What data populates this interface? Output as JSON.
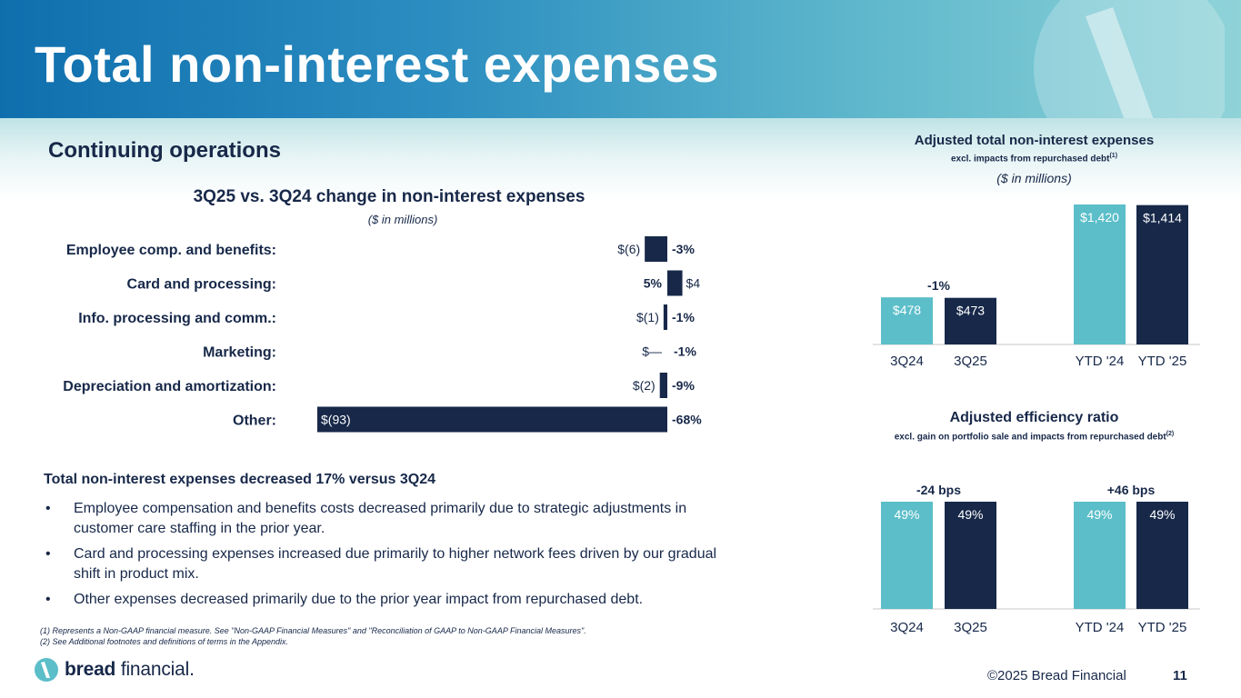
{
  "slide": {
    "title": "Total non-interest expenses",
    "section_title": "Continuing operations",
    "page_number": "11",
    "copyright": "©2025 Bread Financial",
    "brand": {
      "word1": "bread",
      "word2": " financial.",
      "logo_icon": "bread-logo-icon"
    },
    "colors": {
      "navy": "#172849",
      "teal": "#5bbec9",
      "banner_start": "#0f6fae",
      "banner_end": "#8fd3d8"
    }
  },
  "chart_data": [
    {
      "type": "bar",
      "orientation": "horizontal",
      "title": "3Q25 vs. 3Q24 change in non-interest expenses",
      "subtitle": "($ in millions)",
      "categories": [
        "Employee comp. and benefits:",
        "Card and processing:",
        "Info. processing and comm.:",
        "Marketing:",
        "Depreciation and amortization:",
        "Other:"
      ],
      "values": [
        -6,
        4,
        -1,
        0,
        -2,
        -93
      ],
      "value_labels": [
        "$(6)",
        "$4",
        "$(1)",
        "$—",
        "$(2)",
        "$(93)"
      ],
      "pct_labels": [
        "-3%",
        "5%",
        "-1%",
        "-1%",
        "-9%",
        "-68%"
      ],
      "xlim": [
        -93,
        4
      ]
    },
    {
      "type": "bar",
      "title": "Adjusted total non-interest expenses",
      "subtitle": "excl. impacts from repurchased debt",
      "subtitle_footnote": "(1)",
      "unit_note": "($ in millions)",
      "categories": [
        "3Q24",
        "3Q25",
        "YTD '24",
        "YTD '25"
      ],
      "values": [
        478,
        473,
        1420,
        1414
      ],
      "value_labels": [
        "$478",
        "$473",
        "$1,420",
        "$1,414"
      ],
      "colors": [
        "#5bbec9",
        "#172849",
        "#5bbec9",
        "#172849"
      ],
      "annotations": [
        {
          "between": [
            "3Q24",
            "3Q25"
          ],
          "text": "-1%"
        }
      ],
      "ylim": [
        0,
        1420
      ]
    },
    {
      "type": "bar",
      "title": "Adjusted efficiency ratio",
      "subtitle": "excl. gain on portfolio sale and impacts from repurchased debt",
      "subtitle_footnote": "(2)",
      "categories": [
        "3Q24",
        "3Q25",
        "YTD '24",
        "YTD '25"
      ],
      "values": [
        49,
        49,
        49,
        49
      ],
      "value_labels": [
        "49%",
        "49%",
        "49%",
        "49%"
      ],
      "colors": [
        "#5bbec9",
        "#172849",
        "#5bbec9",
        "#172849"
      ],
      "annotations": [
        {
          "between": [
            "3Q24",
            "3Q25"
          ],
          "text": "-24 bps"
        },
        {
          "between": [
            "YTD '24",
            "YTD '25"
          ],
          "text": "+46 bps"
        }
      ],
      "ylim": [
        0,
        49
      ]
    }
  ],
  "commentary": {
    "headline": "Total non-interest expenses decreased 17% versus 3Q24",
    "bullets": [
      "Employee compensation and benefits costs decreased primarily due to strategic adjustments in customer care staffing in the prior year.",
      "Card and processing expenses increased due primarily to higher network fees driven by our gradual shift in product mix.",
      "Other expenses decreased primarily due to the prior year impact from repurchased debt."
    ]
  },
  "footnotes": [
    "(1) Represents a Non-GAAP financial measure. See \"Non-GAAP Financial Measures\" and \"Reconciliation of GAAP to Non-GAAP Financial Measures\".",
    "(2) See Additional footnotes and definitions of terms in the Appendix."
  ]
}
